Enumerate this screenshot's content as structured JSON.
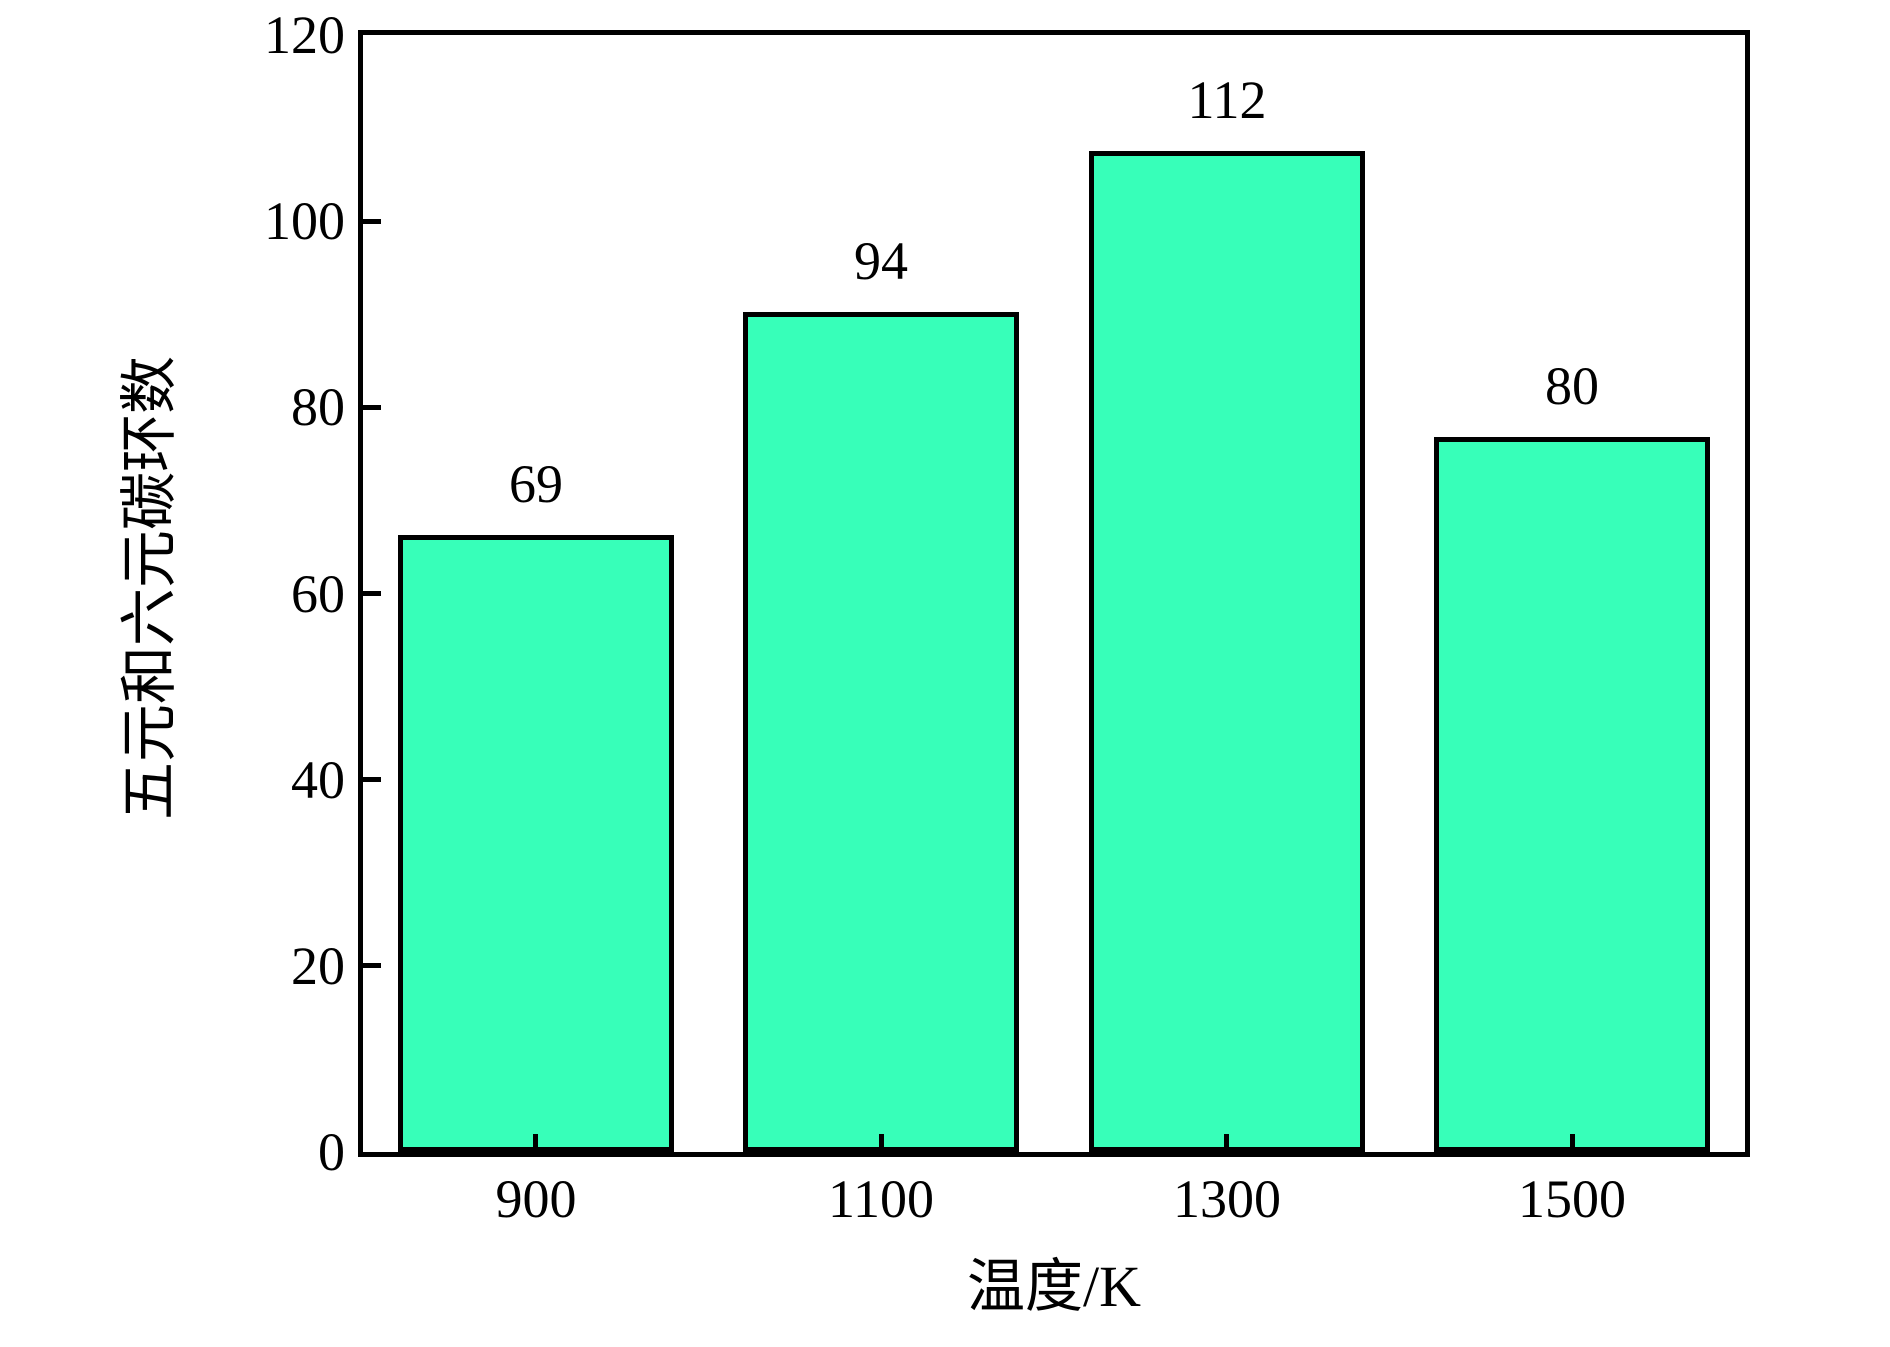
{
  "chart_data": {
    "type": "bar",
    "categories": [
      "900",
      "1100",
      "1300",
      "1500"
    ],
    "values": [
      69,
      94,
      112,
      80
    ],
    "bar_labels": [
      "69",
      "94",
      "112",
      "80"
    ],
    "title": "",
    "xlabel": "温度/K",
    "ylabel": "五元和六元碳环数",
    "ylim": [
      0,
      120
    ],
    "yticks": [
      0,
      20,
      40,
      60,
      80,
      100,
      120
    ],
    "grid": false,
    "legend_position": "none",
    "drawn_value_scale": 0.96,
    "bar_width_fraction": 0.8,
    "colors": {
      "bar_fill": "#37FFB9",
      "bar_edge": "#000000",
      "axis": "#000000",
      "text": "#000000",
      "background": "#FFFFFF"
    }
  }
}
